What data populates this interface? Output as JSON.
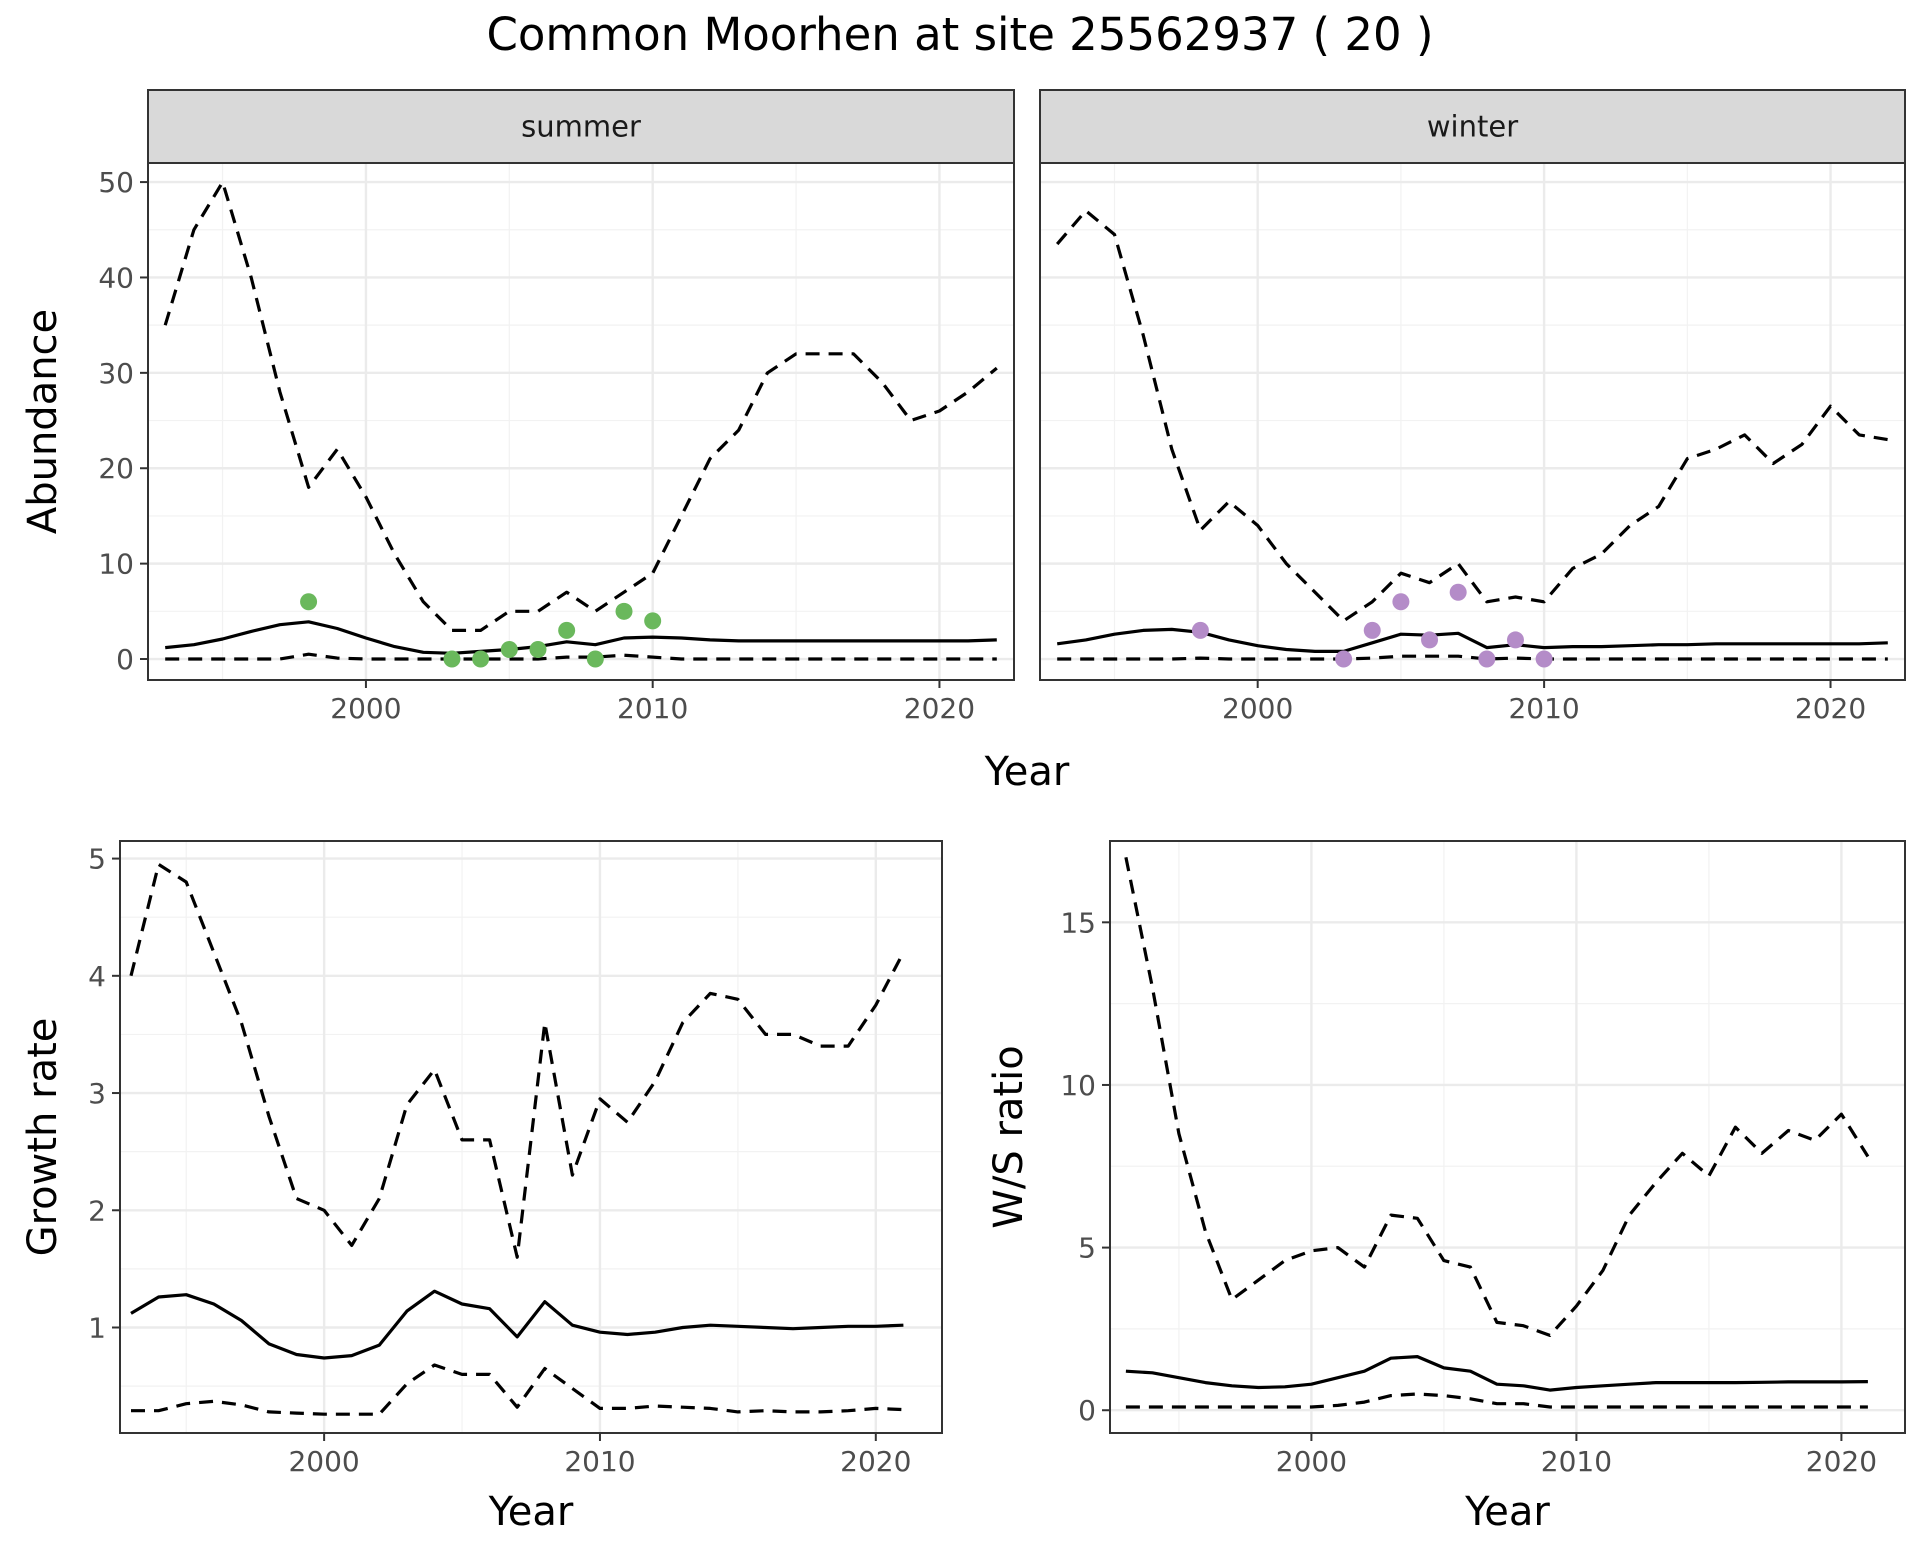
{
  "title": "Common Moorhen at site 25562937 ( 20 )",
  "colors": {
    "summer_points": "#6ab85c",
    "winter_points": "#b48cc8",
    "lines": "#000000"
  },
  "chart_data": [
    {
      "type": "line",
      "panel": "summer",
      "strip_label": "summer",
      "xlabel": "",
      "ylabel": "Abundance",
      "xlim": [
        1992.4,
        2022.6
      ],
      "ylim": [
        -2.2,
        52
      ],
      "x_ticks": [
        2000,
        2010,
        2020
      ],
      "y_ticks": [
        0,
        10,
        20,
        30,
        40,
        50
      ],
      "grid": true,
      "series": [
        {
          "style": "dashed",
          "x": [
            1993,
            1994,
            1995,
            1996,
            1997,
            1998,
            1999,
            2000,
            2001,
            2002,
            2003,
            2004,
            2005,
            2006,
            2007,
            2008,
            2009,
            2010,
            2011,
            2012,
            2013,
            2014,
            2015,
            2016,
            2017,
            2018,
            2019,
            2020,
            2021,
            2022
          ],
          "values": [
            35,
            45,
            50,
            40,
            28,
            18,
            22,
            17,
            11,
            6,
            3,
            3,
            5,
            5,
            7,
            5,
            7,
            9,
            15,
            21,
            24,
            30,
            32,
            32,
            32,
            29,
            25,
            26,
            28,
            30.5
          ]
        },
        {
          "style": "solid",
          "x": [
            1993,
            1994,
            1995,
            1996,
            1997,
            1998,
            1999,
            2000,
            2001,
            2002,
            2003,
            2004,
            2005,
            2006,
            2007,
            2008,
            2009,
            2010,
            2011,
            2012,
            2013,
            2014,
            2015,
            2016,
            2017,
            2018,
            2019,
            2020,
            2021,
            2022
          ],
          "values": [
            1.2,
            1.5,
            2.1,
            2.9,
            3.6,
            3.9,
            3.2,
            2.2,
            1.3,
            0.7,
            0.6,
            0.8,
            1.0,
            1.3,
            1.8,
            1.5,
            2.2,
            2.3,
            2.2,
            2.0,
            1.9,
            1.9,
            1.9,
            1.9,
            1.9,
            1.9,
            1.9,
            1.9,
            1.9,
            2.0
          ]
        },
        {
          "style": "dashed",
          "x": [
            1993,
            1994,
            1995,
            1996,
            1997,
            1998,
            1999,
            2000,
            2001,
            2002,
            2003,
            2004,
            2005,
            2006,
            2007,
            2008,
            2009,
            2010,
            2011,
            2012,
            2013,
            2014,
            2015,
            2016,
            2017,
            2018,
            2019,
            2020,
            2021,
            2022
          ],
          "values": [
            0,
            0,
            0,
            0,
            0,
            0.5,
            0.1,
            0,
            0,
            0,
            0,
            0,
            0,
            0,
            0.2,
            0.2,
            0.4,
            0.2,
            0,
            0,
            0,
            0,
            0,
            0,
            0,
            0,
            0,
            0,
            0,
            0
          ]
        }
      ],
      "points": {
        "x": [
          1998,
          2003,
          2004,
          2005,
          2006,
          2007,
          2008,
          2009,
          2010
        ],
        "values": [
          6,
          0,
          0,
          1,
          1,
          3,
          0,
          5,
          4
        ]
      }
    },
    {
      "type": "line",
      "panel": "winter",
      "strip_label": "winter",
      "xlabel": "",
      "ylabel": "",
      "xlim": [
        1992.4,
        2022.6
      ],
      "ylim": [
        -2.2,
        52
      ],
      "x_ticks": [
        2000,
        2010,
        2020
      ],
      "y_ticks": [
        0,
        10,
        20,
        30,
        40,
        50
      ],
      "grid": true,
      "series": [
        {
          "style": "dashed",
          "x": [
            1993,
            1994,
            1995,
            1996,
            1997,
            1998,
            1999,
            2000,
            2001,
            2002,
            2003,
            2004,
            2005,
            2006,
            2007,
            2008,
            2009,
            2010,
            2011,
            2012,
            2013,
            2014,
            2015,
            2016,
            2017,
            2018,
            2019,
            2020,
            2021,
            2022
          ],
          "values": [
            43.5,
            47,
            44.5,
            34,
            22,
            13.5,
            16.5,
            14,
            10,
            7,
            4,
            6,
            9,
            8,
            10,
            6,
            6.5,
            6,
            9.5,
            11,
            14,
            16,
            21,
            22,
            23.5,
            20.5,
            22.5,
            26.5,
            23.5,
            23
          ]
        },
        {
          "style": "solid",
          "x": [
            1993,
            1994,
            1995,
            1996,
            1997,
            1998,
            1999,
            2000,
            2001,
            2002,
            2003,
            2004,
            2005,
            2006,
            2007,
            2008,
            2009,
            2010,
            2011,
            2012,
            2013,
            2014,
            2015,
            2016,
            2017,
            2018,
            2019,
            2020,
            2021,
            2022
          ],
          "values": [
            1.6,
            2.0,
            2.6,
            3.0,
            3.1,
            2.8,
            2.0,
            1.4,
            1.0,
            0.8,
            0.8,
            1.7,
            2.6,
            2.5,
            2.7,
            1.2,
            1.5,
            1.2,
            1.3,
            1.3,
            1.4,
            1.5,
            1.5,
            1.6,
            1.6,
            1.6,
            1.6,
            1.6,
            1.6,
            1.7
          ]
        },
        {
          "style": "dashed",
          "x": [
            1993,
            1994,
            1995,
            1996,
            1997,
            1998,
            1999,
            2000,
            2001,
            2002,
            2003,
            2004,
            2005,
            2006,
            2007,
            2008,
            2009,
            2010,
            2011,
            2012,
            2013,
            2014,
            2015,
            2016,
            2017,
            2018,
            2019,
            2020,
            2021,
            2022
          ],
          "values": [
            0,
            0,
            0,
            0,
            0,
            0.1,
            0,
            0,
            0,
            0,
            0,
            0.1,
            0.3,
            0.3,
            0.3,
            0,
            0.1,
            0,
            0,
            0,
            0,
            0,
            0,
            0,
            0,
            0,
            0,
            0,
            0,
            0
          ]
        }
      ],
      "points": {
        "x": [
          1998,
          2003,
          2004,
          2005,
          2006,
          2007,
          2008,
          2009,
          2010
        ],
        "values": [
          3,
          0,
          3,
          6,
          2,
          7,
          0,
          2,
          0
        ]
      }
    },
    {
      "type": "line",
      "panel": "growth",
      "xlabel": "Year",
      "ylabel": "Growth rate",
      "xlim": [
        1992.6,
        2022.4
      ],
      "ylim": [
        0.1,
        5.15
      ],
      "x_ticks": [
        2000,
        2010,
        2020
      ],
      "y_ticks": [
        1,
        2,
        3,
        4,
        5
      ],
      "grid": true,
      "series": [
        {
          "style": "dashed",
          "x": [
            1993,
            1994,
            1995,
            1996,
            1997,
            1998,
            1999,
            2000,
            2001,
            2002,
            2003,
            2004,
            2005,
            2006,
            2007,
            2008,
            2009,
            2010,
            2011,
            2012,
            2013,
            2014,
            2015,
            2016,
            2017,
            2018,
            2019,
            2020,
            2021
          ],
          "values": [
            4.0,
            4.95,
            4.8,
            4.2,
            3.6,
            2.8,
            2.1,
            2.0,
            1.7,
            2.1,
            2.9,
            3.2,
            2.6,
            2.6,
            1.6,
            3.6,
            2.3,
            2.95,
            2.75,
            3.1,
            3.6,
            3.85,
            3.8,
            3.5,
            3.5,
            3.4,
            3.4,
            3.75,
            4.2
          ]
        },
        {
          "style": "solid",
          "x": [
            1993,
            1994,
            1995,
            1996,
            1997,
            1998,
            1999,
            2000,
            2001,
            2002,
            2003,
            2004,
            2005,
            2006,
            2007,
            2008,
            2009,
            2010,
            2011,
            2012,
            2013,
            2014,
            2015,
            2016,
            2017,
            2018,
            2019,
            2020,
            2021
          ],
          "values": [
            1.12,
            1.26,
            1.28,
            1.2,
            1.06,
            0.86,
            0.77,
            0.74,
            0.76,
            0.85,
            1.14,
            1.31,
            1.2,
            1.16,
            0.92,
            1.22,
            1.02,
            0.96,
            0.94,
            0.96,
            1.0,
            1.02,
            1.01,
            1.0,
            0.99,
            1.0,
            1.01,
            1.01,
            1.02
          ]
        },
        {
          "style": "dashed",
          "x": [
            1993,
            1994,
            1995,
            1996,
            1997,
            1998,
            1999,
            2000,
            2001,
            2002,
            2003,
            2004,
            2005,
            2006,
            2007,
            2008,
            2009,
            2010,
            2011,
            2012,
            2013,
            2014,
            2015,
            2016,
            2017,
            2018,
            2019,
            2020,
            2021
          ],
          "values": [
            0.29,
            0.29,
            0.35,
            0.37,
            0.34,
            0.28,
            0.27,
            0.26,
            0.26,
            0.26,
            0.52,
            0.68,
            0.6,
            0.6,
            0.32,
            0.65,
            0.48,
            0.31,
            0.31,
            0.33,
            0.32,
            0.31,
            0.28,
            0.29,
            0.28,
            0.28,
            0.29,
            0.31,
            0.3
          ]
        }
      ]
    },
    {
      "type": "line",
      "panel": "ratio",
      "xlabel": "Year",
      "ylabel": "W/S ratio",
      "xlim": [
        1992.4,
        2022.4
      ],
      "ylim": [
        -0.7,
        17.5
      ],
      "x_ticks": [
        2000,
        2010,
        2020
      ],
      "y_ticks": [
        0,
        5,
        10,
        15
      ],
      "grid": true,
      "series": [
        {
          "style": "dashed",
          "x": [
            1993,
            1994,
            1995,
            1996,
            1997,
            1998,
            1999,
            2000,
            2001,
            2002,
            2003,
            2004,
            2005,
            2006,
            2007,
            2008,
            2009,
            2010,
            2011,
            2012,
            2013,
            2014,
            2015,
            2016,
            2017,
            2018,
            2019,
            2020,
            2021
          ],
          "values": [
            17,
            13,
            8.5,
            5.5,
            3.4,
            4.0,
            4.6,
            4.9,
            5.0,
            4.4,
            6.0,
            5.9,
            4.6,
            4.4,
            2.7,
            2.6,
            2.3,
            3.2,
            4.3,
            6.0,
            7.0,
            7.9,
            7.2,
            8.7,
            7.9,
            8.6,
            8.3,
            9.1,
            7.8
          ]
        },
        {
          "style": "solid",
          "x": [
            1993,
            1994,
            1995,
            1996,
            1997,
            1998,
            1999,
            2000,
            2001,
            2002,
            2003,
            2004,
            2005,
            2006,
            2007,
            2008,
            2009,
            2010,
            2011,
            2012,
            2013,
            2014,
            2015,
            2016,
            2017,
            2018,
            2019,
            2020,
            2021
          ],
          "values": [
            1.2,
            1.15,
            1.0,
            0.85,
            0.75,
            0.7,
            0.72,
            0.8,
            1.0,
            1.2,
            1.6,
            1.65,
            1.3,
            1.2,
            0.8,
            0.75,
            0.62,
            0.7,
            0.75,
            0.8,
            0.85,
            0.85,
            0.85,
            0.85,
            0.86,
            0.87,
            0.87,
            0.87,
            0.88
          ]
        },
        {
          "style": "dashed",
          "x": [
            1993,
            1994,
            1995,
            1996,
            1997,
            1998,
            1999,
            2000,
            2001,
            2002,
            2003,
            2004,
            2005,
            2006,
            2007,
            2008,
            2009,
            2010,
            2011,
            2012,
            2013,
            2014,
            2015,
            2016,
            2017,
            2018,
            2019,
            2020,
            2021
          ],
          "values": [
            0.1,
            0.1,
            0.1,
            0.1,
            0.1,
            0.1,
            0.1,
            0.1,
            0.15,
            0.25,
            0.45,
            0.5,
            0.45,
            0.35,
            0.2,
            0.2,
            0.1,
            0.1,
            0.1,
            0.1,
            0.1,
            0.1,
            0.1,
            0.1,
            0.1,
            0.1,
            0.1,
            0.1,
            0.1
          ]
        }
      ]
    }
  ]
}
